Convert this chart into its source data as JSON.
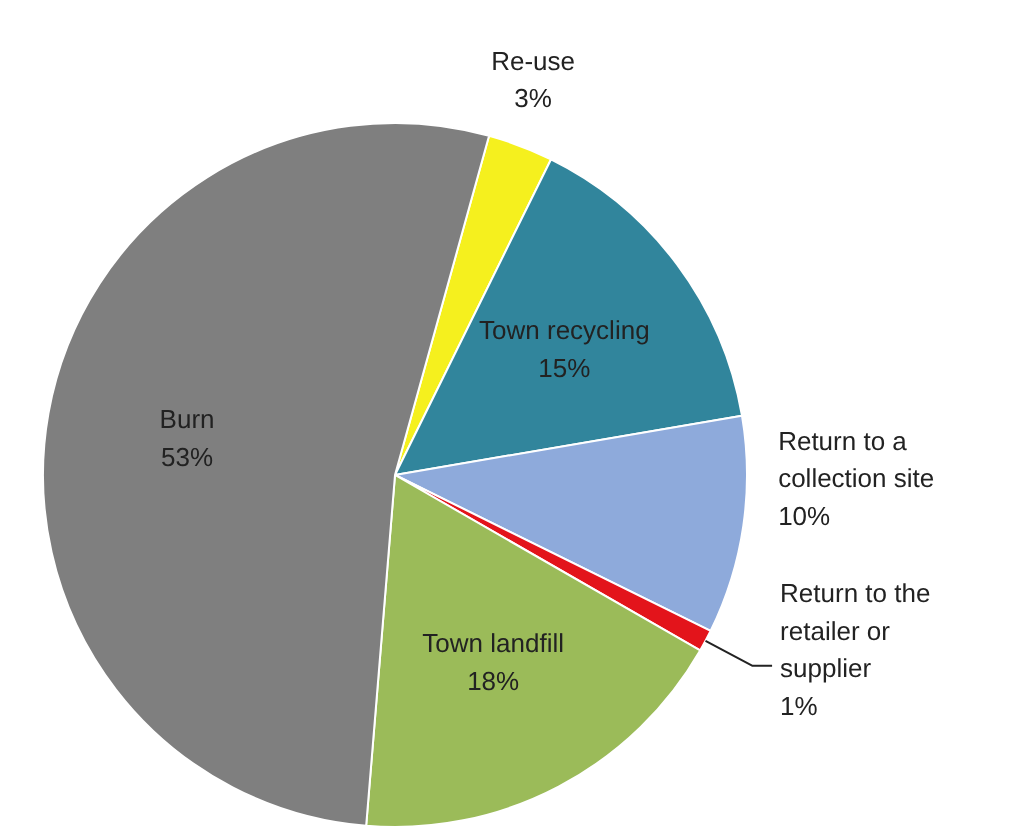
{
  "chart_data": {
    "type": "pie",
    "categories": [
      "Re-use",
      "Town recycling",
      "Return to a collection site",
      "Return to the retailer or supplier",
      "Town landfill",
      "Burn"
    ],
    "values": [
      3,
      15,
      10,
      1,
      18,
      53
    ],
    "colors": [
      "#f5f01e",
      "#31859c",
      "#8eaadb",
      "#e3141b",
      "#9bbb59",
      "#7f7f7f"
    ],
    "value_labels": [
      "3%",
      "15%",
      "10%",
      "1%",
      "18%",
      "53%"
    ]
  }
}
